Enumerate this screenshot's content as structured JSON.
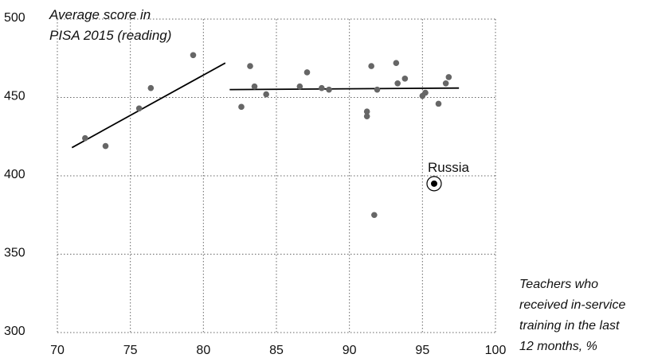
{
  "chart_data": {
    "type": "scatter",
    "title": "",
    "ylabel_lines": [
      "Average score in",
      "PISA 2015 (reading)"
    ],
    "xlabel_lines": [
      "Teachers who",
      "received in-service",
      "training in the last",
      "12 months, %"
    ],
    "xlim": [
      70,
      100
    ],
    "ylim": [
      300,
      500
    ],
    "xticks": [
      70,
      75,
      80,
      85,
      90,
      95,
      100
    ],
    "yticks": [
      300,
      350,
      400,
      450,
      500
    ],
    "grid": "dotted",
    "colors": {
      "points": "#666666",
      "lines": "#000000",
      "highlight": "#000000"
    },
    "points": [
      {
        "x": 71.9,
        "y": 424
      },
      {
        "x": 73.3,
        "y": 419
      },
      {
        "x": 75.6,
        "y": 443
      },
      {
        "x": 76.4,
        "y": 456
      },
      {
        "x": 79.3,
        "y": 477
      },
      {
        "x": 82.6,
        "y": 444
      },
      {
        "x": 83.2,
        "y": 470
      },
      {
        "x": 83.5,
        "y": 457
      },
      {
        "x": 84.3,
        "y": 452
      },
      {
        "x": 86.6,
        "y": 457
      },
      {
        "x": 87.1,
        "y": 466
      },
      {
        "x": 88.1,
        "y": 456
      },
      {
        "x": 88.6,
        "y": 455
      },
      {
        "x": 91.2,
        "y": 441
      },
      {
        "x": 91.2,
        "y": 438
      },
      {
        "x": 91.5,
        "y": 470
      },
      {
        "x": 91.9,
        "y": 455
      },
      {
        "x": 91.7,
        "y": 375
      },
      {
        "x": 93.2,
        "y": 472
      },
      {
        "x": 93.3,
        "y": 459
      },
      {
        "x": 93.8,
        "y": 462
      },
      {
        "x": 95.0,
        "y": 451
      },
      {
        "x": 95.2,
        "y": 453
      },
      {
        "x": 96.1,
        "y": 446
      },
      {
        "x": 96.6,
        "y": 459
      },
      {
        "x": 96.8,
        "y": 463
      }
    ],
    "trend_lines": [
      {
        "from": [
          71.0,
          418
        ],
        "to": [
          81.5,
          472
        ]
      },
      {
        "from": [
          81.8,
          455
        ],
        "to": [
          97.5,
          456
        ]
      }
    ],
    "highlight": {
      "label": "Russia",
      "x": 95.8,
      "y": 395
    }
  }
}
